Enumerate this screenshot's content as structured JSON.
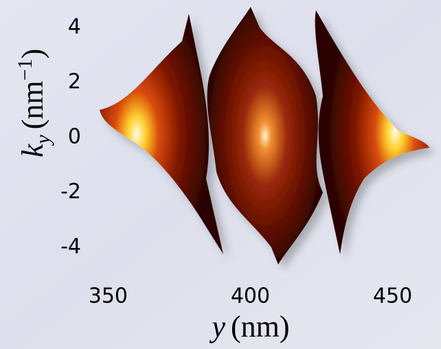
{
  "chart_data": {
    "type": "density",
    "xlabel": {
      "symbol": "y",
      "unit": "(nm)"
    },
    "ylabel": {
      "symbol": "k",
      "subscript": "y",
      "unit_open": "(nm",
      "superscript": "−1",
      "unit_close": ")"
    },
    "xlim": [
      312,
      467
    ],
    "xticks": [
      350,
      400,
      450
    ],
    "ylim": [
      -5,
      5
    ],
    "yticks": [
      4,
      2,
      0,
      -2,
      -4
    ]
  }
}
